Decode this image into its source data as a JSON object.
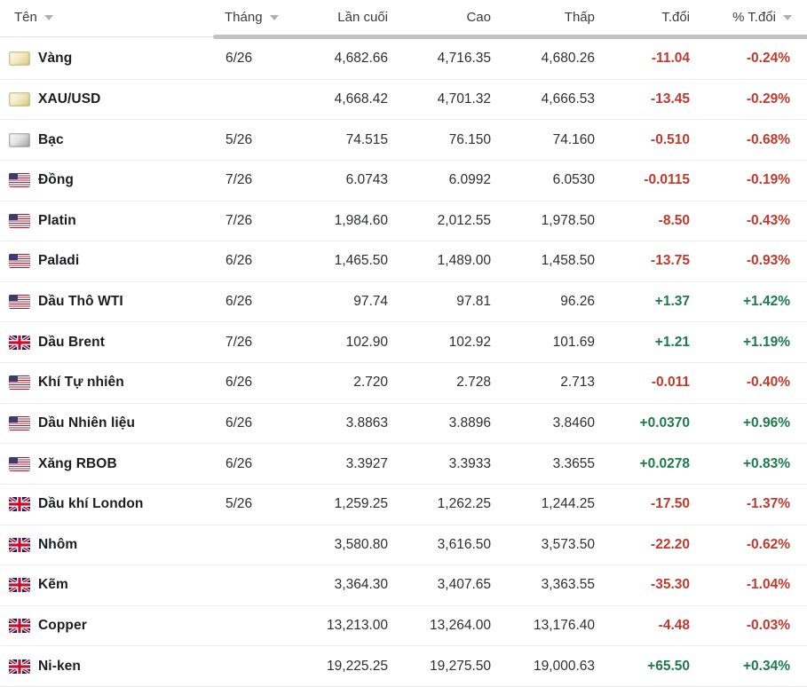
{
  "colors": {
    "negative": "#c2392c",
    "positive": "#1b7b4b",
    "header_text": "#3a3b3d",
    "row_name_text": "#1b1c1e",
    "number_text": "#2d2e30",
    "divider": "#ededee",
    "header_bar": "#c3c3c4"
  },
  "header": {
    "columns": [
      {
        "label": "Tên",
        "sortable": true
      },
      {
        "label": "Tháng",
        "sortable": true
      },
      {
        "label": "Lần cuối",
        "sortable": false
      },
      {
        "label": "Cao",
        "sortable": false
      },
      {
        "label": "Thấp",
        "sortable": false
      },
      {
        "label": "T.đổi",
        "sortable": false
      },
      {
        "label": "% T.đổi",
        "sortable": true
      }
    ]
  },
  "rows": [
    {
      "icon": "gold-bar-icon",
      "name": "Vàng",
      "month": "6/26",
      "last": "4,682.66",
      "high": "4,716.35",
      "low": "4,680.26",
      "change": "-11.04",
      "change_pct": "-0.24%",
      "direction": "down"
    },
    {
      "icon": "gold-bar-icon",
      "name": "XAU/USD",
      "month": "",
      "last": "4,668.42",
      "high": "4,701.32",
      "low": "4,666.53",
      "change": "-13.45",
      "change_pct": "-0.29%",
      "direction": "down"
    },
    {
      "icon": "silver-bar-icon",
      "name": "Bạc",
      "month": "5/26",
      "last": "74.515",
      "high": "76.150",
      "low": "74.160",
      "change": "-0.510",
      "change_pct": "-0.68%",
      "direction": "down"
    },
    {
      "icon": "us-flag-icon",
      "name": "Đồng",
      "month": "7/26",
      "last": "6.0743",
      "high": "6.0992",
      "low": "6.0530",
      "change": "-0.0115",
      "change_pct": "-0.19%",
      "direction": "down"
    },
    {
      "icon": "us-flag-icon",
      "name": "Platin",
      "month": "7/26",
      "last": "1,984.60",
      "high": "2,012.55",
      "low": "1,978.50",
      "change": "-8.50",
      "change_pct": "-0.43%",
      "direction": "down"
    },
    {
      "icon": "us-flag-icon",
      "name": "Paladi",
      "month": "6/26",
      "last": "1,465.50",
      "high": "1,489.00",
      "low": "1,458.50",
      "change": "-13.75",
      "change_pct": "-0.93%",
      "direction": "down"
    },
    {
      "icon": "us-flag-icon",
      "name": "Dầu Thô WTI",
      "month": "6/26",
      "last": "97.74",
      "high": "97.81",
      "low": "96.26",
      "change": "+1.37",
      "change_pct": "+1.42%",
      "direction": "up"
    },
    {
      "icon": "uk-flag-icon",
      "name": "Dầu Brent",
      "month": "7/26",
      "last": "102.90",
      "high": "102.92",
      "low": "101.69",
      "change": "+1.21",
      "change_pct": "+1.19%",
      "direction": "up"
    },
    {
      "icon": "us-flag-icon",
      "name": "Khí Tự nhiên",
      "month": "6/26",
      "last": "2.720",
      "high": "2.728",
      "low": "2.713",
      "change": "-0.011",
      "change_pct": "-0.40%",
      "direction": "down"
    },
    {
      "icon": "us-flag-icon",
      "name": "Dầu Nhiên liệu",
      "month": "6/26",
      "last": "3.8863",
      "high": "3.8896",
      "low": "3.8460",
      "change": "+0.0370",
      "change_pct": "+0.96%",
      "direction": "up"
    },
    {
      "icon": "us-flag-icon",
      "name": "Xăng RBOB",
      "month": "6/26",
      "last": "3.3927",
      "high": "3.3933",
      "low": "3.3655",
      "change": "+0.0278",
      "change_pct": "+0.83%",
      "direction": "up"
    },
    {
      "icon": "uk-flag-icon",
      "name": "Dầu khí London",
      "month": "5/26",
      "last": "1,259.25",
      "high": "1,262.25",
      "low": "1,244.25",
      "change": "-17.50",
      "change_pct": "-1.37%",
      "direction": "down"
    },
    {
      "icon": "uk-flag-icon",
      "name": "Nhôm",
      "month": "",
      "last": "3,580.80",
      "high": "3,616.50",
      "low": "3,573.50",
      "change": "-22.20",
      "change_pct": "-0.62%",
      "direction": "down"
    },
    {
      "icon": "uk-flag-icon",
      "name": "Kẽm",
      "month": "",
      "last": "3,364.30",
      "high": "3,407.65",
      "low": "3,363.55",
      "change": "-35.30",
      "change_pct": "-1.04%",
      "direction": "down"
    },
    {
      "icon": "uk-flag-icon",
      "name": "Copper",
      "month": "",
      "last": "13,213.00",
      "high": "13,264.00",
      "low": "13,176.40",
      "change": "-4.48",
      "change_pct": "-0.03%",
      "direction": "down"
    },
    {
      "icon": "uk-flag-icon",
      "name": "Ni-ken",
      "month": "",
      "last": "19,225.25",
      "high": "19,275.50",
      "low": "19,000.63",
      "change": "+65.50",
      "change_pct": "+0.34%",
      "direction": "up"
    }
  ]
}
